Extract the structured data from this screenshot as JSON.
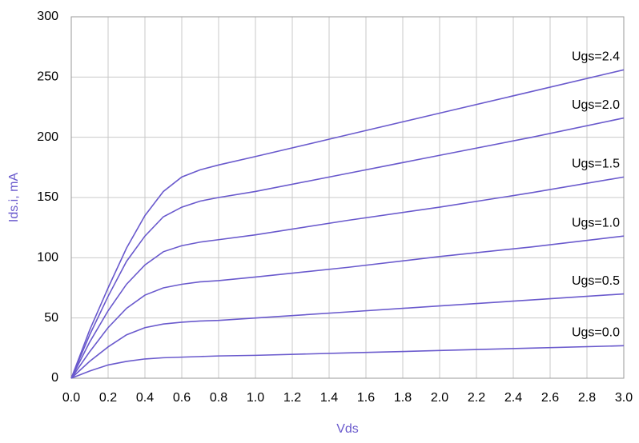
{
  "chart_data": {
    "type": "line",
    "x_label": "Vds",
    "y_label": "Ids.i, mA",
    "x": [
      0,
      0.1,
      0.2,
      0.3,
      0.4,
      0.5,
      0.6,
      0.7,
      0.8,
      1.0,
      1.5,
      2.0,
      2.5,
      3.0
    ],
    "series": [
      {
        "name": "Ugs=0.0",
        "color": "#6a5acd",
        "values": [
          0,
          6,
          11,
          14,
          16,
          17,
          17.5,
          18,
          18.5,
          19,
          21,
          23,
          25,
          27
        ]
      },
      {
        "name": "Ugs=0.5",
        "color": "#6a5acd",
        "values": [
          0,
          14,
          26,
          36,
          42,
          45,
          46.5,
          47.5,
          48,
          50,
          55,
          60,
          65,
          70
        ]
      },
      {
        "name": "Ugs=1.0",
        "color": "#6a5acd",
        "values": [
          0,
          22,
          42,
          58,
          69,
          75,
          78,
          80,
          81,
          84,
          92,
          101,
          109,
          118
        ]
      },
      {
        "name": "Ugs=1.5",
        "color": "#6a5acd",
        "values": [
          0,
          30,
          56,
          78,
          94,
          105,
          110,
          113,
          115,
          119,
          131,
          142,
          154,
          167
        ]
      },
      {
        "name": "Ugs=2.0",
        "color": "#6a5acd",
        "values": [
          0,
          36,
          68,
          97,
          118,
          134,
          142,
          147,
          150,
          155,
          170,
          185,
          200,
          216
        ]
      },
      {
        "name": "Ugs=2.4",
        "color": "#6a5acd",
        "values": [
          0,
          40,
          75,
          108,
          135,
          155,
          167,
          173,
          177,
          184,
          202,
          220,
          238,
          256
        ]
      }
    ],
    "xlim": [
      0,
      3
    ],
    "xticks": [
      {
        "value": 0,
        "label": "0.0"
      },
      0.2,
      0.4,
      0.6,
      0.8,
      {
        "value": 1,
        "label": "1.0"
      },
      1.2,
      1.4,
      1.6,
      1.8,
      {
        "value": 2,
        "label": "2.0"
      },
      2.2,
      2.4,
      2.6,
      2.8,
      {
        "value": 3,
        "label": "3.0"
      }
    ],
    "ylim": [
      0,
      300
    ],
    "yticks": [
      0,
      50,
      100,
      150,
      200,
      250,
      300
    ],
    "grid": true
  }
}
